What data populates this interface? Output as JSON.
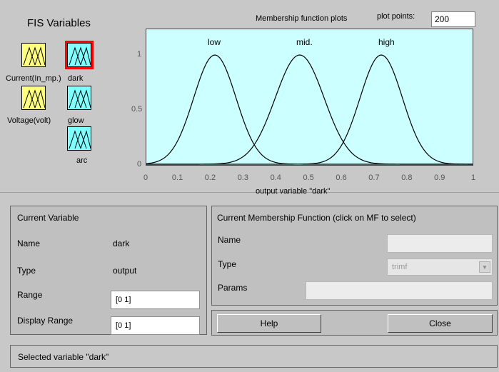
{
  "fis": {
    "title": "FIS Variables",
    "inputs": [
      {
        "label": "Current(In_mp.)"
      },
      {
        "label": "Voltage(volt)"
      }
    ],
    "outputs": [
      {
        "label": "dark",
        "selected": true
      },
      {
        "label": "glow",
        "selected": false
      },
      {
        "label": "arc",
        "selected": false
      }
    ],
    "colors": {
      "input": "#ffff80",
      "output": "#80ffff",
      "selected": "#ff0000"
    }
  },
  "plot": {
    "title": "Membership function plots",
    "points_label": "plot points:",
    "points_value": "200",
    "xlabel": "output variable \"dark\"",
    "x_ticks": [
      "0",
      "0.1",
      "0.2",
      "0.3",
      "0.4",
      "0.5",
      "0.6",
      "0.7",
      "0.8",
      "0.9",
      "1"
    ],
    "y_ticks": [
      "1",
      "0.5",
      "0"
    ],
    "mf_labels": [
      "low",
      "mid.",
      "high"
    ],
    "background": "#ccffff"
  },
  "chart_data": {
    "type": "line",
    "xlim": [
      0,
      1
    ],
    "ylim": [
      0,
      1
    ],
    "series": [
      {
        "name": "low",
        "shape": "gaussian",
        "center": 0.21,
        "sigma": 0.065
      },
      {
        "name": "mid.",
        "shape": "gaussian",
        "center": 0.47,
        "sigma": 0.075
      },
      {
        "name": "high",
        "shape": "gaussian",
        "center": 0.72,
        "sigma": 0.065
      }
    ]
  },
  "current_variable": {
    "title": "Current Variable",
    "name_label": "Name",
    "name_value": "dark",
    "type_label": "Type",
    "type_value": "output",
    "range_label": "Range",
    "range_value": "[0 1]",
    "display_range_label": "Display Range",
    "display_range_value": "[0 1]"
  },
  "current_mf": {
    "title": "Current Membership Function (click on MF to select)",
    "name_label": "Name",
    "type_label": "Type",
    "type_value": "trimf",
    "params_label": "Params"
  },
  "buttons": {
    "help": "Help",
    "close": "Close"
  },
  "status": "Selected variable \"dark\""
}
